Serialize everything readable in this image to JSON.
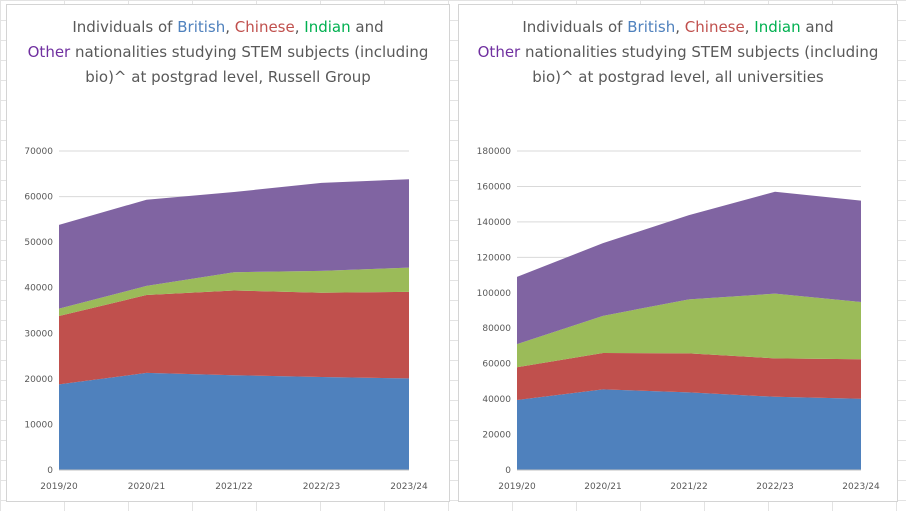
{
  "colors": {
    "British": "#4f81bd",
    "Chinese": "#c0504d",
    "Indian": "#9bbb59",
    "Other": "#8064a2",
    "title_british": "#4f81bd",
    "title_chinese": "#c0504d",
    "title_indian": "#00b050",
    "title_other": "#7030a0",
    "grid": "#d9d9d9"
  },
  "chart_data": [
    {
      "type": "area",
      "stacked": true,
      "title_parts": {
        "prefix": "Individuals of ",
        "british": "British",
        "sep1": ", ",
        "chinese": "Chinese",
        "sep2": ", ",
        "indian": "Indian",
        "and": " and",
        "other": "Other",
        "suffix": " nationalities studying STEM subjects (including bio)^ at postgrad level, Russell Group"
      },
      "categories": [
        "2019/20",
        "2020/21",
        "2021/22",
        "2022/23",
        "2023/24"
      ],
      "ylim": [
        0,
        70000
      ],
      "yticks": [
        0,
        10000,
        20000,
        30000,
        40000,
        50000,
        60000,
        70000
      ],
      "grid": true,
      "series": [
        {
          "name": "British",
          "values": [
            18800,
            21300,
            20800,
            20400,
            20100
          ]
        },
        {
          "name": "Chinese",
          "values": [
            15000,
            17100,
            18600,
            18500,
            19000
          ]
        },
        {
          "name": "Indian",
          "values": [
            1600,
            2000,
            4000,
            4800,
            5300
          ]
        },
        {
          "name": "Other",
          "values": [
            18400,
            18900,
            17600,
            19300,
            19400
          ]
        }
      ]
    },
    {
      "type": "area",
      "stacked": true,
      "title_parts": {
        "prefix": "Individuals of ",
        "british": "British",
        "sep1": ", ",
        "chinese": "Chinese",
        "sep2": ", ",
        "indian": "Indian",
        "and": " and",
        "other": "Other",
        "suffix": " nationalities studying STEM subjects (including bio)^ at postgrad level, all universities"
      },
      "categories": [
        "2019/20",
        "2020/21",
        "2021/22",
        "2022/23",
        "2023/24"
      ],
      "ylim": [
        0,
        180000
      ],
      "yticks": [
        0,
        20000,
        40000,
        60000,
        80000,
        100000,
        120000,
        140000,
        160000,
        180000
      ],
      "grid": true,
      "series": [
        {
          "name": "British",
          "values": [
            39500,
            45500,
            43800,
            41300,
            40200
          ]
        },
        {
          "name": "Chinese",
          "values": [
            18500,
            20500,
            22000,
            21700,
            22300
          ]
        },
        {
          "name": "Indian",
          "values": [
            13000,
            21000,
            30500,
            36500,
            32300
          ]
        },
        {
          "name": "Other",
          "values": [
            38000,
            41000,
            47500,
            57500,
            57200
          ]
        }
      ]
    }
  ]
}
